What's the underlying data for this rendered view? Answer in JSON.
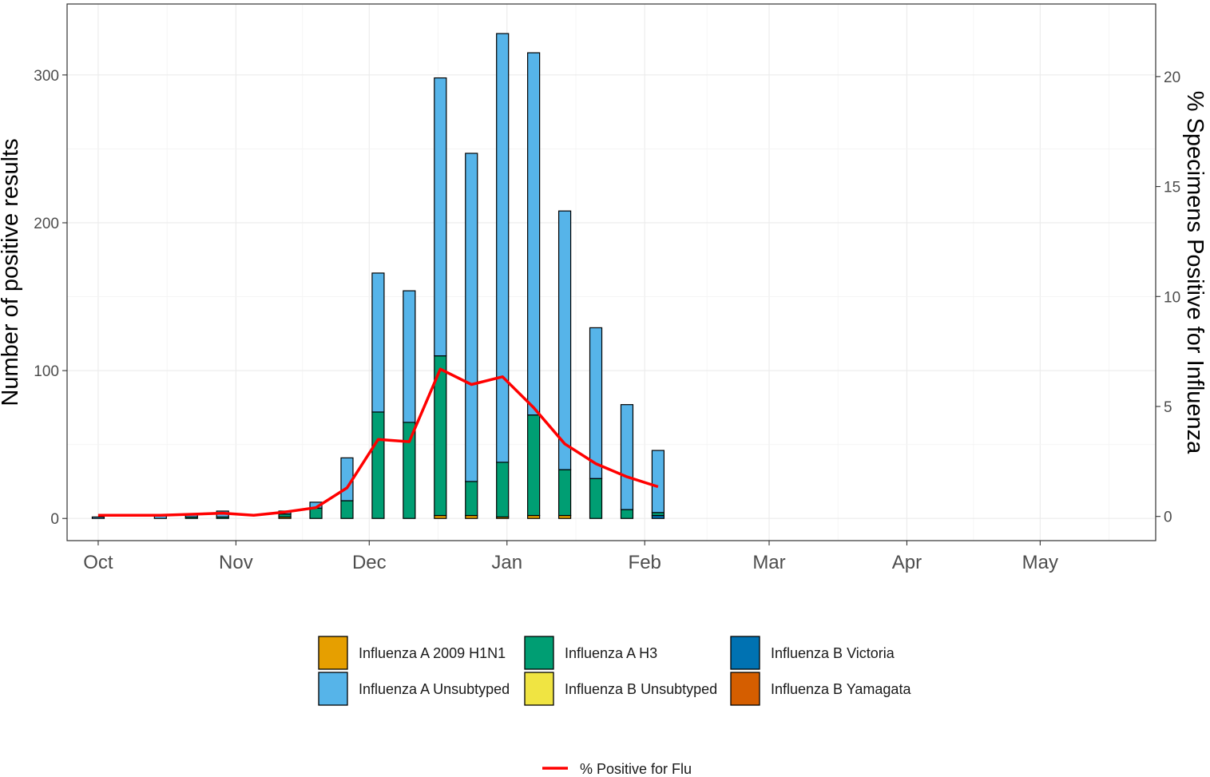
{
  "chart_data": {
    "type": "bar",
    "stacked": true,
    "secondary_line": true,
    "xlabel": "",
    "ylabel": "Number of positive results",
    "y2label": "% Specimens Positive for Influenza",
    "ylim": [
      -15,
      348
    ],
    "y2lim": [
      -1.1,
      23.3
    ],
    "yticks": [
      0,
      100,
      200,
      300
    ],
    "y2ticks": [
      0,
      5,
      10,
      15,
      20
    ],
    "x_tick_labels": [
      {
        "date": "2017-10-01",
        "label": "Oct"
      },
      {
        "date": "2017-11-01",
        "label": "Nov"
      },
      {
        "date": "2017-12-01",
        "label": "Dec"
      },
      {
        "date": "2018-01-01",
        "label": "Jan"
      },
      {
        "date": "2018-02-01",
        "label": "Feb"
      },
      {
        "date": "2018-03-01",
        "label": "Mar"
      },
      {
        "date": "2018-04-01",
        "label": "Apr"
      },
      {
        "date": "2018-05-01",
        "label": "May"
      }
    ],
    "xlim": [
      "2017-09-24",
      "2018-05-27"
    ],
    "grid": true,
    "legend_position": "bottom",
    "series": [
      {
        "name": "Influenza A 2009 H1N1",
        "color": "#E69F00"
      },
      {
        "name": "Influenza A H3",
        "color": "#009E73"
      },
      {
        "name": "Influenza B Victoria",
        "color": "#0072B2"
      },
      {
        "name": "Influenza A Unsubtyped",
        "color": "#56B4E9"
      },
      {
        "name": "Influenza B Unsubtyped",
        "color": "#F0E442"
      },
      {
        "name": "Influenza B Yamagata",
        "color": "#D55E00"
      }
    ],
    "stack_order": [
      "Influenza A 2009 H1N1",
      "Influenza B Yamagata",
      "Influenza B Unsubtyped",
      "Influenza B Victoria",
      "Influenza A H3",
      "Influenza A Unsubtyped"
    ],
    "weeks": [
      {
        "date": "2017-10-01",
        "values": {
          "Influenza A 2009 H1N1": 0,
          "Influenza B Yamagata": 0,
          "Influenza B Unsubtyped": 0,
          "Influenza B Victoria": 0,
          "Influenza A H3": 0,
          "Influenza A Unsubtyped": 1
        }
      },
      {
        "date": "2017-10-15",
        "values": {
          "Influenza A 2009 H1N1": 0,
          "Influenza B Yamagata": 0,
          "Influenza B Unsubtyped": 0,
          "Influenza B Victoria": 0,
          "Influenza A H3": 0,
          "Influenza A Unsubtyped": 2
        }
      },
      {
        "date": "2017-10-22",
        "values": {
          "Influenza A 2009 H1N1": 0,
          "Influenza B Yamagata": 0,
          "Influenza B Unsubtyped": 0,
          "Influenza B Victoria": 0,
          "Influenza A H3": 1,
          "Influenza A Unsubtyped": 2
        }
      },
      {
        "date": "2017-10-29",
        "values": {
          "Influenza A 2009 H1N1": 0,
          "Influenza B Yamagata": 0,
          "Influenza B Unsubtyped": 0,
          "Influenza B Victoria": 0,
          "Influenza A H3": 1,
          "Influenza A Unsubtyped": 4
        }
      },
      {
        "date": "2017-11-12",
        "values": {
          "Influenza A 2009 H1N1": 1,
          "Influenza B Yamagata": 0,
          "Influenza B Unsubtyped": 0,
          "Influenza B Victoria": 0,
          "Influenza A H3": 2,
          "Influenza A Unsubtyped": 2
        }
      },
      {
        "date": "2017-11-19",
        "values": {
          "Influenza A 2009 H1N1": 0,
          "Influenza B Yamagata": 0,
          "Influenza B Unsubtyped": 0,
          "Influenza B Victoria": 0,
          "Influenza A H3": 7,
          "Influenza A Unsubtyped": 4
        }
      },
      {
        "date": "2017-11-26",
        "values": {
          "Influenza A 2009 H1N1": 0,
          "Influenza B Yamagata": 0,
          "Influenza B Unsubtyped": 0,
          "Influenza B Victoria": 0,
          "Influenza A H3": 12,
          "Influenza A Unsubtyped": 29
        }
      },
      {
        "date": "2017-12-03",
        "values": {
          "Influenza A 2009 H1N1": 0,
          "Influenza B Yamagata": 0,
          "Influenza B Unsubtyped": 0,
          "Influenza B Victoria": 0,
          "Influenza A H3": 72,
          "Influenza A Unsubtyped": 94
        }
      },
      {
        "date": "2017-12-10",
        "values": {
          "Influenza A 2009 H1N1": 0,
          "Influenza B Yamagata": 0,
          "Influenza B Unsubtyped": 0,
          "Influenza B Victoria": 0,
          "Influenza A H3": 65,
          "Influenza A Unsubtyped": 89
        }
      },
      {
        "date": "2017-12-17",
        "values": {
          "Influenza A 2009 H1N1": 2,
          "Influenza B Yamagata": 0,
          "Influenza B Unsubtyped": 0,
          "Influenza B Victoria": 0,
          "Influenza A H3": 108,
          "Influenza A Unsubtyped": 188
        }
      },
      {
        "date": "2017-12-24",
        "values": {
          "Influenza A 2009 H1N1": 2,
          "Influenza B Yamagata": 0,
          "Influenza B Unsubtyped": 0,
          "Influenza B Victoria": 0,
          "Influenza A H3": 23,
          "Influenza A Unsubtyped": 222
        }
      },
      {
        "date": "2017-12-31",
        "values": {
          "Influenza A 2009 H1N1": 1,
          "Influenza B Yamagata": 0,
          "Influenza B Unsubtyped": 0,
          "Influenza B Victoria": 0,
          "Influenza A H3": 37,
          "Influenza A Unsubtyped": 290
        }
      },
      {
        "date": "2018-01-07",
        "values": {
          "Influenza A 2009 H1N1": 2,
          "Influenza B Yamagata": 0,
          "Influenza B Unsubtyped": 0,
          "Influenza B Victoria": 0,
          "Influenza A H3": 68,
          "Influenza A Unsubtyped": 245
        }
      },
      {
        "date": "2018-01-14",
        "values": {
          "Influenza A 2009 H1N1": 2,
          "Influenza B Yamagata": 0,
          "Influenza B Unsubtyped": 0,
          "Influenza B Victoria": 0,
          "Influenza A H3": 31,
          "Influenza A Unsubtyped": 175
        }
      },
      {
        "date": "2018-01-21",
        "values": {
          "Influenza A 2009 H1N1": 0,
          "Influenza B Yamagata": 0,
          "Influenza B Unsubtyped": 0,
          "Influenza B Victoria": 0,
          "Influenza A H3": 27,
          "Influenza A Unsubtyped": 102
        }
      },
      {
        "date": "2018-01-28",
        "values": {
          "Influenza A 2009 H1N1": 0,
          "Influenza B Yamagata": 0,
          "Influenza B Unsubtyped": 0,
          "Influenza B Victoria": 0,
          "Influenza A H3": 6,
          "Influenza A Unsubtyped": 71
        }
      },
      {
        "date": "2018-02-04",
        "values": {
          "Influenza A 2009 H1N1": 0,
          "Influenza B Yamagata": 0,
          "Influenza B Unsubtyped": 0,
          "Influenza B Victoria": 2,
          "Influenza A H3": 2,
          "Influenza A Unsubtyped": 42
        }
      }
    ],
    "line": {
      "name": "% Positive for Flu",
      "color": "#FF0000",
      "points": [
        {
          "date": "2017-10-01",
          "value": 0.05
        },
        {
          "date": "2017-10-15",
          "value": 0.05
        },
        {
          "date": "2017-10-22",
          "value": 0.1
        },
        {
          "date": "2017-10-29",
          "value": 0.15
        },
        {
          "date": "2017-11-05",
          "value": 0.05
        },
        {
          "date": "2017-11-12",
          "value": 0.2
        },
        {
          "date": "2017-11-19",
          "value": 0.4
        },
        {
          "date": "2017-11-26",
          "value": 1.3
        },
        {
          "date": "2017-12-03",
          "value": 3.5
        },
        {
          "date": "2017-12-10",
          "value": 3.4
        },
        {
          "date": "2017-12-17",
          "value": 6.7
        },
        {
          "date": "2017-12-24",
          "value": 6.0
        },
        {
          "date": "2017-12-31",
          "value": 6.35
        },
        {
          "date": "2018-01-07",
          "value": 4.95
        },
        {
          "date": "2018-01-14",
          "value": 3.3
        },
        {
          "date": "2018-01-21",
          "value": 2.4
        },
        {
          "date": "2018-01-28",
          "value": 1.8
        },
        {
          "date": "2018-02-04",
          "value": 1.35
        }
      ]
    }
  }
}
